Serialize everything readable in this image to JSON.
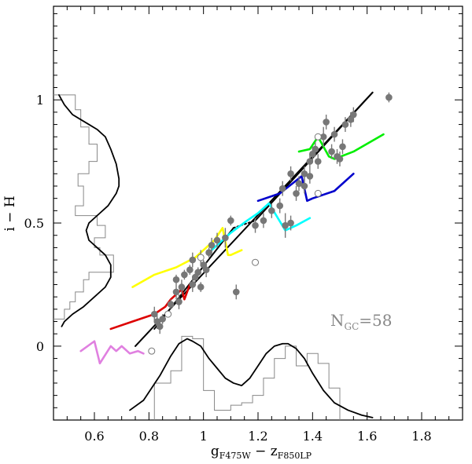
{
  "chart_data": {
    "type": "scatter",
    "title": "",
    "xlabel": "g_F475W − z_F850LP",
    "ylabel": "i − H",
    "xlim": [
      0.45,
      1.95
    ],
    "ylim": [
      -0.3,
      1.38
    ],
    "grid": false,
    "x_tick_labels": [
      "0.6",
      "0.8",
      "1",
      "1.2",
      "1.4",
      "1.6",
      "1.8"
    ],
    "x_ticks": [
      0.6,
      0.8,
      1.0,
      1.2,
      1.4,
      1.6,
      1.8
    ],
    "y_tick_labels": [
      "0",
      "0.5",
      "1"
    ],
    "y_ticks": [
      0,
      0.5,
      1.0
    ],
    "annotation": {
      "main": "N",
      "sub": "GC",
      "rest": "=58",
      "color": "#888888"
    },
    "series": [
      {
        "name": "Globular clusters (filled)",
        "kind": "points",
        "color": "#777777",
        "points": [
          [
            0.82,
            0.13,
            0.03
          ],
          [
            0.83,
            0.1,
            0.03
          ],
          [
            0.84,
            0.08,
            0.03
          ],
          [
            0.85,
            0.11,
            0.02
          ],
          [
            0.88,
            0.17,
            0.02
          ],
          [
            0.9,
            0.22,
            0.03
          ],
          [
            0.9,
            0.27,
            0.02
          ],
          [
            0.91,
            0.18,
            0.03
          ],
          [
            0.92,
            0.24,
            0.03
          ],
          [
            0.93,
            0.29,
            0.02
          ],
          [
            0.95,
            0.31,
            0.02
          ],
          [
            0.96,
            0.25,
            0.03
          ],
          [
            0.96,
            0.35,
            0.03
          ],
          [
            0.97,
            0.28,
            0.02
          ],
          [
            0.98,
            0.3,
            0.02
          ],
          [
            0.99,
            0.36,
            0.03
          ],
          [
            0.99,
            0.24,
            0.02
          ],
          [
            1.0,
            0.33,
            0.02
          ],
          [
            1.01,
            0.31,
            0.03
          ],
          [
            1.02,
            0.38,
            0.02
          ],
          [
            1.03,
            0.41,
            0.03
          ],
          [
            1.05,
            0.43,
            0.03
          ],
          [
            1.08,
            0.44,
            0.04
          ],
          [
            1.1,
            0.51,
            0.02
          ],
          [
            1.12,
            0.22,
            0.03
          ],
          [
            1.19,
            0.49,
            0.03
          ],
          [
            1.22,
            0.51,
            0.03
          ],
          [
            1.25,
            0.55,
            0.03
          ],
          [
            1.28,
            0.57,
            0.03
          ],
          [
            1.29,
            0.64,
            0.03
          ],
          [
            1.3,
            0.49,
            0.05
          ],
          [
            1.32,
            0.7,
            0.03
          ],
          [
            1.32,
            0.5,
            0.03
          ],
          [
            1.34,
            0.62,
            0.03
          ],
          [
            1.35,
            0.66,
            0.03
          ],
          [
            1.37,
            0.7,
            0.03
          ],
          [
            1.37,
            0.65,
            0.03
          ],
          [
            1.39,
            0.75,
            0.03
          ],
          [
            1.39,
            0.69,
            0.03
          ],
          [
            1.4,
            0.78,
            0.03
          ],
          [
            1.41,
            0.8,
            0.03
          ],
          [
            1.42,
            0.75,
            0.03
          ],
          [
            1.44,
            0.85,
            0.04
          ],
          [
            1.45,
            0.91,
            0.03
          ],
          [
            1.47,
            0.79,
            0.03
          ],
          [
            1.48,
            0.86,
            0.03
          ],
          [
            1.49,
            0.77,
            0.03
          ],
          [
            1.5,
            0.76,
            0.03
          ],
          [
            1.51,
            0.81,
            0.03
          ],
          [
            1.52,
            0.9,
            0.03
          ],
          [
            1.54,
            0.92,
            0.03
          ],
          [
            1.55,
            0.94,
            0.03
          ],
          [
            1.68,
            1.01,
            0.02
          ]
        ]
      },
      {
        "name": "Globular clusters (open)",
        "kind": "points-open",
        "color": "#777777",
        "points": [
          [
            0.81,
            -0.02
          ],
          [
            0.87,
            0.13
          ],
          [
            0.99,
            0.36
          ],
          [
            1.19,
            0.34
          ],
          [
            1.42,
            0.62
          ],
          [
            1.42,
            0.85
          ]
        ]
      },
      {
        "name": "Linear fit",
        "kind": "line",
        "color": "#000000",
        "width": 2.0,
        "x": [
          0.75,
          1.62
        ],
        "y": [
          0.0,
          1.03
        ]
      },
      {
        "name": "Broken fit (segment 1)",
        "kind": "line",
        "color": "#000000",
        "width": 2.0,
        "x": [
          0.82,
          1.11
        ],
        "y": [
          0.07,
          0.48
        ]
      },
      {
        "name": "Broken fit (dotted)",
        "kind": "line",
        "color": "#000000",
        "width": 2.0,
        "dash": "2 3",
        "x": [
          1.11,
          1.19
        ],
        "y": [
          0.48,
          0.51
        ]
      },
      {
        "name": "Broken fit (segment 2)",
        "kind": "line",
        "color": "#000000",
        "width": 2.0,
        "x": [
          1.19,
          1.62
        ],
        "y": [
          0.51,
          1.03
        ]
      },
      {
        "name": "Model track (violet)",
        "kind": "line",
        "color": "#e080e0",
        "width": 2.6,
        "x": [
          0.55,
          0.6,
          0.62,
          0.66,
          0.68,
          0.7,
          0.73,
          0.76,
          0.78
        ],
        "y": [
          -0.02,
          0.02,
          -0.07,
          0.0,
          -0.02,
          0.0,
          -0.03,
          -0.02,
          -0.03
        ]
      },
      {
        "name": "Model track (red)",
        "kind": "line",
        "color": "#dd0000",
        "width": 2.6,
        "x": [
          0.66,
          0.74,
          0.82,
          0.86,
          0.88,
          0.9,
          0.92,
          0.93,
          0.95
        ],
        "y": [
          0.07,
          0.1,
          0.13,
          0.16,
          0.19,
          0.21,
          0.23,
          0.19,
          0.25
        ]
      },
      {
        "name": "Model track (yellow)",
        "kind": "line",
        "color": "#ffff00",
        "width": 2.6,
        "x": [
          0.74,
          0.82,
          0.9,
          0.97,
          1.04,
          1.07,
          1.09,
          1.1,
          1.14
        ],
        "y": [
          0.24,
          0.29,
          0.32,
          0.36,
          0.43,
          0.48,
          0.37,
          0.37,
          0.39
        ]
      },
      {
        "name": "Model track (cyan)",
        "kind": "line",
        "color": "#00ffff",
        "width": 2.6,
        "x": [
          1.03,
          1.1,
          1.16,
          1.2,
          1.24,
          1.3,
          1.34,
          1.39
        ],
        "y": [
          0.39,
          0.46,
          0.51,
          0.54,
          0.58,
          0.47,
          0.49,
          0.52
        ]
      },
      {
        "name": "Model track (blue)",
        "kind": "line",
        "color": "#0000cc",
        "width": 2.6,
        "x": [
          1.2,
          1.28,
          1.36,
          1.38,
          1.4,
          1.48,
          1.55
        ],
        "y": [
          0.59,
          0.62,
          0.69,
          0.59,
          0.6,
          0.63,
          0.7
        ]
      },
      {
        "name": "Model track (green)",
        "kind": "line",
        "color": "#00ee00",
        "width": 2.6,
        "x": [
          1.35,
          1.39,
          1.42,
          1.46,
          1.48,
          1.55,
          1.66
        ],
        "y": [
          0.79,
          0.8,
          0.85,
          0.77,
          0.76,
          0.79,
          0.86
        ]
      },
      {
        "name": "Histogram of i−H (left)",
        "kind": "step-y",
        "color": "#888888",
        "width": 1.0,
        "x0": 0.45,
        "bins": [
          [
            1.02,
            0.53
          ],
          [
            0.96,
            0.55
          ],
          [
            0.89,
            0.58
          ],
          [
            0.82,
            0.61
          ],
          [
            0.75,
            0.58
          ],
          [
            0.7,
            0.54
          ],
          [
            0.65,
            0.56
          ],
          [
            0.57,
            0.53
          ],
          [
            0.53,
            0.61
          ],
          [
            0.49,
            0.64
          ],
          [
            0.44,
            0.6
          ],
          [
            0.4,
            0.62
          ],
          [
            0.37,
            0.67
          ],
          [
            0.3,
            0.58
          ],
          [
            0.27,
            0.56
          ],
          [
            0.22,
            0.53
          ],
          [
            0.18,
            0.51
          ],
          [
            0.15,
            0.49
          ],
          [
            0.11,
            0.45
          ]
        ]
      },
      {
        "name": "Density curve (left)",
        "kind": "line",
        "color": "#000000",
        "width": 1.8,
        "x": [
          0.47,
          0.49,
          0.52,
          0.55,
          0.58,
          0.61,
          0.64,
          0.66,
          0.68,
          0.69,
          0.69,
          0.68,
          0.65,
          0.61,
          0.58,
          0.57,
          0.58,
          0.61,
          0.64,
          0.66,
          0.66,
          0.64,
          0.6,
          0.56,
          0.52,
          0.49,
          0.48
        ],
        "y": [
          1.02,
          0.98,
          0.94,
          0.92,
          0.9,
          0.88,
          0.85,
          0.8,
          0.74,
          0.68,
          0.65,
          0.62,
          0.57,
          0.53,
          0.5,
          0.47,
          0.43,
          0.4,
          0.37,
          0.33,
          0.28,
          0.24,
          0.2,
          0.16,
          0.13,
          0.1,
          0.08
        ]
      },
      {
        "name": "Histogram of g−z (bottom)",
        "kind": "step-x",
        "color": "#888888",
        "width": 1.0,
        "y0": -0.3,
        "bins": [
          [
            0.82,
            -0.15
          ],
          [
            0.88,
            -0.1
          ],
          [
            0.92,
            0.04
          ],
          [
            0.96,
            0.03
          ],
          [
            1.0,
            -0.18
          ],
          [
            1.04,
            -0.26
          ],
          [
            1.1,
            -0.24
          ],
          [
            1.14,
            -0.23
          ],
          [
            1.18,
            -0.2
          ],
          [
            1.22,
            -0.13
          ],
          [
            1.26,
            -0.05
          ],
          [
            1.3,
            0.0
          ],
          [
            1.34,
            -0.08
          ],
          [
            1.38,
            -0.03
          ],
          [
            1.42,
            -0.07
          ],
          [
            1.46,
            -0.17
          ]
        ]
      },
      {
        "name": "Density curve (bottom)",
        "kind": "line",
        "color": "#000000",
        "width": 1.8,
        "x": [
          0.73,
          0.78,
          0.84,
          0.88,
          0.91,
          0.94,
          0.96,
          0.99,
          1.02,
          1.05,
          1.08,
          1.11,
          1.14,
          1.17,
          1.2,
          1.23,
          1.26,
          1.29,
          1.31,
          1.34,
          1.37,
          1.4,
          1.44,
          1.48,
          1.53,
          1.58,
          1.62
        ],
        "y": [
          -0.26,
          -0.22,
          -0.12,
          -0.04,
          0.01,
          0.03,
          0.02,
          0.0,
          -0.05,
          -0.09,
          -0.13,
          -0.15,
          -0.16,
          -0.13,
          -0.08,
          -0.03,
          0.0,
          0.01,
          0.01,
          -0.01,
          -0.05,
          -0.11,
          -0.18,
          -0.23,
          -0.26,
          -0.28,
          -0.29
        ]
      }
    ]
  }
}
